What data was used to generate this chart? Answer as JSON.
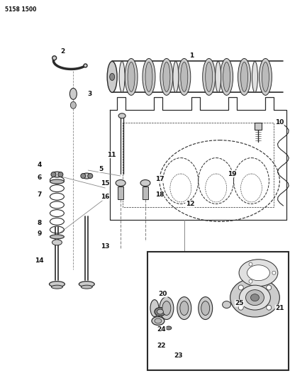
{
  "title": "5158 1500",
  "bg_color": "#ffffff",
  "fig_width": 4.1,
  "fig_height": 5.33,
  "dpi": 100,
  "line_color": "#2a2a2a",
  "label_color": "#111111",
  "gray_dark": "#555555",
  "gray_mid": "#888888",
  "gray_light": "#bbbbbb",
  "gray_fill": "#cccccc",
  "gray_very_light": "#e0e0e0"
}
